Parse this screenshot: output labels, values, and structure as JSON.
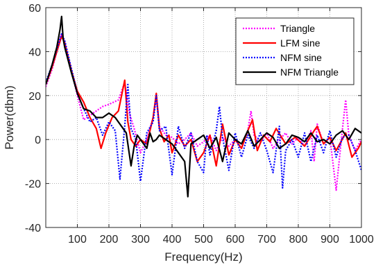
{
  "chart_data": {
    "type": "line",
    "xlabel": "Frequency(Hz)",
    "ylabel": "Power(dbm)",
    "xlim": [
      0,
      1000
    ],
    "ylim": [
      -40,
      60
    ],
    "xticks": [
      100,
      200,
      300,
      400,
      500,
      600,
      700,
      800,
      900,
      1000
    ],
    "yticks": [
      -40,
      -20,
      0,
      20,
      40,
      60
    ],
    "grid": true,
    "grid_style": "dotted",
    "legend_position": "top-right",
    "series": [
      {
        "name": "Triangle",
        "color": "#ff00ff",
        "style": "dotted",
        "x": [
          0,
          20,
          35,
          50,
          60,
          80,
          100,
          120,
          150,
          180,
          200,
          230,
          250,
          265,
          280,
          300,
          320,
          340,
          350,
          360,
          380,
          400,
          420,
          440,
          460,
          480,
          500,
          520,
          540,
          560,
          580,
          600,
          620,
          640,
          650,
          660,
          680,
          700,
          720,
          740,
          760,
          780,
          800,
          820,
          840,
          850,
          860,
          880,
          900,
          920,
          940,
          950,
          960,
          980,
          1000
        ],
        "y": [
          24,
          32,
          40,
          48,
          44,
          32,
          20,
          9,
          12,
          15,
          16,
          18,
          26,
          12,
          5,
          -6,
          0,
          10,
          19,
          6,
          2,
          1,
          -2,
          0,
          3,
          -3,
          -1,
          2,
          -5,
          1,
          -3,
          0,
          -4,
          4,
          13,
          2,
          -1,
          3,
          -4,
          0,
          3,
          -2,
          1,
          -3,
          4,
          -10,
          7,
          -2,
          1,
          -23,
          5,
          18,
          2,
          -5,
          0
        ]
      },
      {
        "name": "LFM sine",
        "color": "#ff0000",
        "style": "solid",
        "x": [
          0,
          20,
          35,
          50,
          60,
          80,
          100,
          120,
          140,
          160,
          175,
          190,
          210,
          230,
          250,
          260,
          270,
          285,
          300,
          320,
          340,
          350,
          360,
          375,
          390,
          400,
          420,
          440,
          460,
          480,
          500,
          520,
          540,
          560,
          580,
          600,
          620,
          640,
          655,
          670,
          690,
          710,
          730,
          760,
          790,
          820,
          850,
          860,
          880,
          900,
          920,
          950,
          970,
          990,
          1000
        ],
        "y": [
          25,
          33,
          40,
          47,
          44,
          32,
          22,
          17,
          10,
          5,
          -4,
          3,
          10,
          13,
          27,
          8,
          0,
          -3,
          0,
          -2,
          10,
          21,
          5,
          -1,
          2,
          -6,
          2,
          -3,
          0,
          -10,
          -6,
          2,
          -12,
          7,
          -7,
          0,
          -4,
          4,
          9,
          -5,
          2,
          -1,
          5,
          -2,
          1,
          -3,
          4,
          6,
          -2,
          1,
          -5,
          3,
          -8,
          -4,
          -1
        ]
      },
      {
        "name": "NFM sine",
        "color": "#0000ff",
        "style": "dotted",
        "x": [
          0,
          20,
          35,
          50,
          60,
          80,
          100,
          120,
          140,
          160,
          180,
          200,
          220,
          235,
          250,
          260,
          270,
          285,
          300,
          320,
          340,
          350,
          360,
          380,
          400,
          420,
          440,
          460,
          480,
          500,
          510,
          520,
          540,
          550,
          560,
          580,
          600,
          620,
          640,
          660,
          680,
          700,
          720,
          740,
          750,
          760,
          780,
          800,
          820,
          840,
          860,
          880,
          900,
          920,
          940,
          960,
          980,
          1000
        ],
        "y": [
          26,
          34,
          41,
          48,
          45,
          33,
          21,
          14,
          8,
          10,
          2,
          8,
          4,
          -18,
          6,
          25,
          5,
          0,
          -19,
          3,
          8,
          20,
          4,
          6,
          -16,
          6,
          -4,
          3,
          -10,
          -15,
          2,
          -7,
          4,
          15,
          1,
          -14,
          3,
          -8,
          2,
          -4,
          3,
          -5,
          -15,
          6,
          -22,
          -5,
          0,
          -8,
          3,
          -10,
          2,
          -6,
          4,
          -8,
          1,
          2,
          -5,
          -14
        ]
      },
      {
        "name": "NFM Triangle",
        "color": "#000000",
        "style": "solid",
        "x": [
          0,
          20,
          35,
          45,
          50,
          55,
          60,
          80,
          100,
          120,
          140,
          160,
          180,
          200,
          220,
          240,
          255,
          270,
          280,
          290,
          300,
          320,
          330,
          340,
          350,
          360,
          380,
          400,
          420,
          440,
          450,
          460,
          480,
          500,
          520,
          540,
          560,
          580,
          600,
          620,
          640,
          660,
          680,
          700,
          720,
          740,
          760,
          780,
          800,
          820,
          840,
          860,
          880,
          900,
          920,
          940,
          960,
          980,
          1000
        ],
        "y": [
          25,
          34,
          42,
          50,
          56,
          46,
          42,
          31,
          21,
          14,
          13,
          10,
          10,
          12,
          10,
          6,
          3,
          -12,
          -3,
          2,
          0,
          -4,
          3,
          -1,
          0,
          2,
          0,
          -2,
          -6,
          -10,
          -26,
          -2,
          0,
          2,
          -4,
          1,
          -10,
          3,
          0,
          -2,
          4,
          -3,
          0,
          3,
          1,
          -4,
          -2,
          2,
          1,
          -1,
          3,
          -1,
          0,
          -2,
          2,
          4,
          0,
          5,
          3
        ]
      }
    ]
  }
}
